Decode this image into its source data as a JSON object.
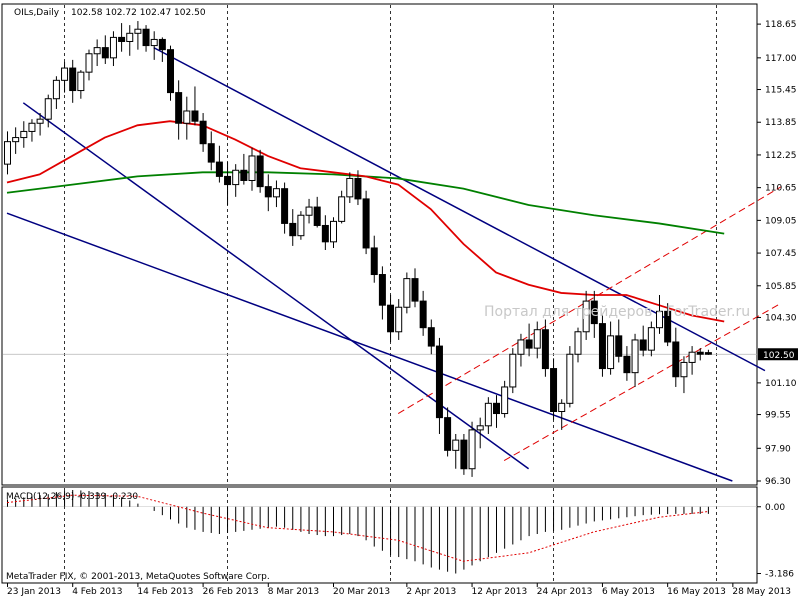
{
  "chart_data": {
    "type": "candlestick",
    "symbol_label": "OILs,Daily",
    "ohlc_header": "102.58 102.72 102.47 102.50",
    "last_price": "102.50",
    "watermark": "Портал для трейдеров - ForTrader.ru",
    "copyright": "MetaTrader FIX, © 2001-2013, MetaQuotes Software Corp.",
    "macd_label": "MACD(12,26,9) -0.339 -0.230",
    "price_axis": {
      "min": 96.3,
      "max": 118.9,
      "ticks": [
        "118.65",
        "117.00",
        "115.45",
        "113.85",
        "112.25",
        "110.65",
        "109.05",
        "107.45",
        "105.85",
        "104.30",
        "102.50",
        "101.10",
        "99.55",
        "97.90",
        "96.30"
      ]
    },
    "macd_axis": {
      "min": -3.4,
      "max": 0.8,
      "ticks": [
        "0.00",
        "-3.186"
      ]
    },
    "date_labels": [
      {
        "label": "23 Jan 2013",
        "bar": 0
      },
      {
        "label": "4 Feb 2013",
        "bar": 8
      },
      {
        "label": "14 Feb 2013",
        "bar": 16
      },
      {
        "label": "26 Feb 2013",
        "bar": 24
      },
      {
        "label": "8 Mar 2013",
        "bar": 32
      },
      {
        "label": "20 Mar 2013",
        "bar": 40
      },
      {
        "label": "2 Apr 2013",
        "bar": 49
      },
      {
        "label": "12 Apr 2013",
        "bar": 57
      },
      {
        "label": "24 Apr 2013",
        "bar": 65
      },
      {
        "label": "6 May 2013",
        "bar": 73
      },
      {
        "label": "16 May 2013",
        "bar": 81
      },
      {
        "label": "28 May 2013",
        "bar": 89
      }
    ],
    "vgrid_bars": [
      7,
      27,
      47,
      67,
      87
    ],
    "candles": [
      [
        111.8,
        113.4,
        111.3,
        112.9
      ],
      [
        112.9,
        113.6,
        112.3,
        113.1
      ],
      [
        113.1,
        113.9,
        112.6,
        113.4
      ],
      [
        113.4,
        114.0,
        112.9,
        113.8
      ],
      [
        113.8,
        114.3,
        113.2,
        114.0
      ],
      [
        114.0,
        115.2,
        113.6,
        115.0
      ],
      [
        115.0,
        116.1,
        114.5,
        115.9
      ],
      [
        115.9,
        116.8,
        115.3,
        116.5
      ],
      [
        116.5,
        116.9,
        114.8,
        115.4
      ],
      [
        115.4,
        116.4,
        115.0,
        116.3
      ],
      [
        116.3,
        117.4,
        115.9,
        117.2
      ],
      [
        117.2,
        117.9,
        116.6,
        117.5
      ],
      [
        117.5,
        118.1,
        116.7,
        117.0
      ],
      [
        117.0,
        118.3,
        116.6,
        118.0
      ],
      [
        118.0,
        118.7,
        117.3,
        117.8
      ],
      [
        117.8,
        118.6,
        117.1,
        118.2
      ],
      [
        118.2,
        118.8,
        117.4,
        118.4
      ],
      [
        118.4,
        118.6,
        117.3,
        117.6
      ],
      [
        117.6,
        118.3,
        116.9,
        117.9
      ],
      [
        117.9,
        118.0,
        116.8,
        117.4
      ],
      [
        117.4,
        117.6,
        114.9,
        115.3
      ],
      [
        115.3,
        115.9,
        113.0,
        113.8
      ],
      [
        113.8,
        115.1,
        113.0,
        114.4
      ],
      [
        114.4,
        115.6,
        113.7,
        113.9
      ],
      [
        113.9,
        114.3,
        112.4,
        112.8
      ],
      [
        112.8,
        113.4,
        111.5,
        111.9
      ],
      [
        111.9,
        112.7,
        110.9,
        111.2
      ],
      [
        111.2,
        111.9,
        109.8,
        110.8
      ],
      [
        110.8,
        111.8,
        110.2,
        111.5
      ],
      [
        111.5,
        112.3,
        110.8,
        111.0
      ],
      [
        111.0,
        112.6,
        110.5,
        112.2
      ],
      [
        112.2,
        112.5,
        110.4,
        110.7
      ],
      [
        110.7,
        111.3,
        109.5,
        110.2
      ],
      [
        110.2,
        111.0,
        109.7,
        110.6
      ],
      [
        110.6,
        110.9,
        108.4,
        108.9
      ],
      [
        108.9,
        109.6,
        107.8,
        108.3
      ],
      [
        108.3,
        109.5,
        108.1,
        109.3
      ],
      [
        109.3,
        110.1,
        108.9,
        109.7
      ],
      [
        109.7,
        110.2,
        108.7,
        108.8
      ],
      [
        108.8,
        109.3,
        107.6,
        108.0
      ],
      [
        108.0,
        109.2,
        107.7,
        109.0
      ],
      [
        109.0,
        110.5,
        108.9,
        110.2
      ],
      [
        110.2,
        111.4,
        109.9,
        111.1
      ],
      [
        111.1,
        111.5,
        109.8,
        110.1
      ],
      [
        110.1,
        110.5,
        107.4,
        107.7
      ],
      [
        107.7,
        108.3,
        106.0,
        106.4
      ],
      [
        106.4,
        106.8,
        104.2,
        104.9
      ],
      [
        104.9,
        105.4,
        103.1,
        103.6
      ],
      [
        103.6,
        105.2,
        103.2,
        104.8
      ],
      [
        104.8,
        106.5,
        104.5,
        106.2
      ],
      [
        106.2,
        106.7,
        104.8,
        105.1
      ],
      [
        105.1,
        105.6,
        103.4,
        103.8
      ],
      [
        103.8,
        104.2,
        102.5,
        102.9
      ],
      [
        102.9,
        103.3,
        98.6,
        99.4
      ],
      [
        99.4,
        99.9,
        97.5,
        97.8
      ],
      [
        97.8,
        98.6,
        96.9,
        98.3
      ],
      [
        98.3,
        98.6,
        96.6,
        96.9
      ],
      [
        96.9,
        99.2,
        96.5,
        98.8
      ],
      [
        98.8,
        99.4,
        97.9,
        99.0
      ],
      [
        99.0,
        100.4,
        98.6,
        100.1
      ],
      [
        100.1,
        100.5,
        98.9,
        99.6
      ],
      [
        99.6,
        101.2,
        99.4,
        100.9
      ],
      [
        100.9,
        102.8,
        100.6,
        102.5
      ],
      [
        102.5,
        103.5,
        101.9,
        103.2
      ],
      [
        103.2,
        104.0,
        102.4,
        102.8
      ],
      [
        102.8,
        104.1,
        102.3,
        103.7
      ],
      [
        103.7,
        104.2,
        101.4,
        101.8
      ],
      [
        101.8,
        102.3,
        99.3,
        99.7
      ],
      [
        99.7,
        100.3,
        98.8,
        100.1
      ],
      [
        100.1,
        102.9,
        99.9,
        102.5
      ],
      [
        102.5,
        103.8,
        102.1,
        103.6
      ],
      [
        103.6,
        105.6,
        103.2,
        105.1
      ],
      [
        105.1,
        105.6,
        103.3,
        104.0
      ],
      [
        104.0,
        104.4,
        101.4,
        101.8
      ],
      [
        101.8,
        104.1,
        101.5,
        103.4
      ],
      [
        103.4,
        104.2,
        102.1,
        102.4
      ],
      [
        102.4,
        102.9,
        101.2,
        101.6
      ],
      [
        101.6,
        103.5,
        100.9,
        103.2
      ],
      [
        103.2,
        103.9,
        102.4,
        102.7
      ],
      [
        102.7,
        104.1,
        102.4,
        103.8
      ],
      [
        103.8,
        105.4,
        103.5,
        104.6
      ],
      [
        104.6,
        105.0,
        102.9,
        103.1
      ],
      [
        103.1,
        103.8,
        100.9,
        101.4
      ],
      [
        101.4,
        102.4,
        100.6,
        102.1
      ],
      [
        102.1,
        102.9,
        101.5,
        102.6
      ],
      [
        102.6,
        102.8,
        102.2,
        102.5
      ],
      [
        102.58,
        102.72,
        102.47,
        102.5
      ]
    ],
    "ma_red": [
      [
        0,
        110.9
      ],
      [
        4,
        111.3
      ],
      [
        8,
        112.2
      ],
      [
        12,
        113.1
      ],
      [
        16,
        113.7
      ],
      [
        20,
        113.9
      ],
      [
        24,
        113.7
      ],
      [
        28,
        113.0
      ],
      [
        32,
        112.2
      ],
      [
        36,
        111.6
      ],
      [
        40,
        111.4
      ],
      [
        44,
        111.2
      ],
      [
        48,
        110.8
      ],
      [
        52,
        109.6
      ],
      [
        56,
        107.9
      ],
      [
        60,
        106.5
      ],
      [
        64,
        105.9
      ],
      [
        68,
        105.5
      ],
      [
        72,
        105.4
      ],
      [
        76,
        105.4
      ],
      [
        80,
        104.9
      ],
      [
        84,
        104.4
      ],
      [
        88,
        104.1
      ]
    ],
    "ma_green": [
      [
        0,
        110.4
      ],
      [
        8,
        110.8
      ],
      [
        16,
        111.2
      ],
      [
        24,
        111.4
      ],
      [
        32,
        111.4
      ],
      [
        40,
        111.3
      ],
      [
        48,
        111.1
      ],
      [
        56,
        110.6
      ],
      [
        64,
        109.8
      ],
      [
        72,
        109.3
      ],
      [
        80,
        108.9
      ],
      [
        88,
        108.4
      ]
    ],
    "channel_upper": [
      [
        18,
        117.5
      ],
      [
        93,
        101.7
      ]
    ],
    "channel_mid": [
      [
        2,
        114.8
      ],
      [
        64,
        96.9
      ]
    ],
    "channel_lower": [
      [
        0,
        109.4
      ],
      [
        89,
        96.3
      ]
    ],
    "dashed_upper": [
      [
        48,
        99.6
      ],
      [
        95,
        110.7
      ]
    ],
    "dashed_lower": [
      [
        61,
        97.3
      ],
      [
        95,
        105.0
      ]
    ],
    "macd_hist": [
      0.35,
      0.4,
      0.45,
      0.5,
      0.55,
      0.6,
      0.7,
      0.75,
      0.8,
      0.78,
      0.75,
      0.7,
      0.65,
      0.55,
      0.45,
      0.3,
      0.15,
      0.0,
      -0.2,
      -0.4,
      -0.6,
      -0.8,
      -1.0,
      -1.1,
      -1.2,
      -1.25,
      -1.3,
      -1.25,
      -1.2,
      -1.15,
      -1.1,
      -1.05,
      -1.0,
      -0.95,
      -1.0,
      -1.1,
      -1.2,
      -1.3,
      -1.35,
      -1.4,
      -1.4,
      -1.35,
      -1.3,
      -1.4,
      -1.6,
      -1.9,
      -2.1,
      -2.3,
      -2.4,
      -2.5,
      -2.6,
      -2.75,
      -2.9,
      -3.0,
      -3.1,
      -3.186,
      -3.0,
      -2.8,
      -2.6,
      -2.4,
      -2.2,
      -2.0,
      -1.8,
      -1.6,
      -1.4,
      -1.3,
      -1.2,
      -1.15,
      -1.1,
      -1.0,
      -0.9,
      -0.8,
      -0.7,
      -0.65,
      -0.6,
      -0.55,
      -0.5,
      -0.45,
      -0.4,
      -0.38,
      -0.36,
      -0.35,
      -0.34,
      -0.34,
      -0.34,
      -0.34,
      -0.339
    ],
    "macd_signal": [
      [
        0,
        0.2
      ],
      [
        8,
        0.55
      ],
      [
        16,
        0.5
      ],
      [
        24,
        -0.3
      ],
      [
        32,
        -1.0
      ],
      [
        40,
        -1.2
      ],
      [
        48,
        -1.6
      ],
      [
        56,
        -2.6
      ],
      [
        64,
        -2.2
      ],
      [
        72,
        -1.2
      ],
      [
        80,
        -0.5
      ],
      [
        86,
        -0.23
      ]
    ]
  }
}
